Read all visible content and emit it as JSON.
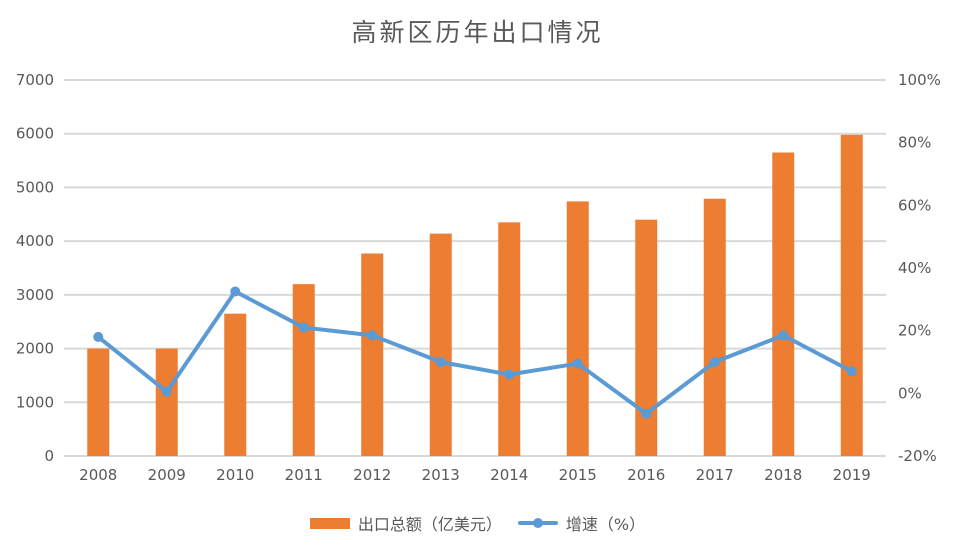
{
  "chart_data": {
    "type": "combo-bar-line",
    "title": "高新区历年出口情况",
    "categories": [
      "2008",
      "2009",
      "2010",
      "2011",
      "2012",
      "2013",
      "2014",
      "2015",
      "2016",
      "2017",
      "2018",
      "2019"
    ],
    "series": [
      {
        "name": "出口总额（亿美元）",
        "type": "bar",
        "axis": "left",
        "color": "#ED7D31",
        "values": [
          2000,
          2000,
          2650,
          3200,
          3770,
          4140,
          4350,
          4740,
          4400,
          4790,
          5650,
          5980
        ]
      },
      {
        "name": "增速（%）",
        "type": "line",
        "axis": "right",
        "color": "#5B9BD5",
        "values": [
          18,
          0.5,
          32.5,
          21,
          18.5,
          10,
          6,
          9.5,
          -6.5,
          10,
          18.5,
          7
        ]
      }
    ],
    "left_axis": {
      "min": 0,
      "max": 7000,
      "step": 1000,
      "tick_labels": [
        "0",
        "1000",
        "2000",
        "3000",
        "4000",
        "5000",
        "6000",
        "7000"
      ]
    },
    "right_axis": {
      "min": -20,
      "max": 100,
      "step": 20,
      "tick_labels": [
        "-20%",
        "0%",
        "20%",
        "40%",
        "60%",
        "80%",
        "100%"
      ]
    },
    "legend": {
      "position": "bottom"
    },
    "grid": true,
    "gridline_color": "#D9D9D9",
    "text_color": "#595959",
    "background_color": "#FFFFFF"
  }
}
